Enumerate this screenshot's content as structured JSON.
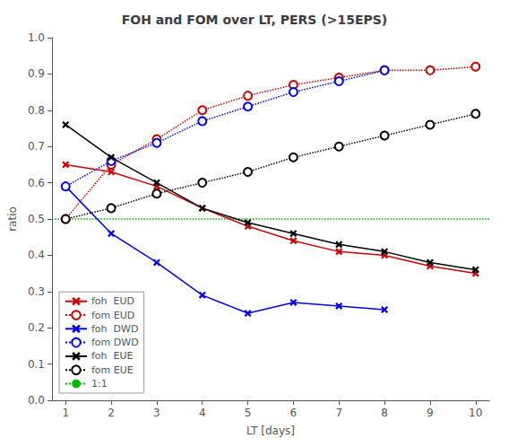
{
  "chart_data": {
    "type": "line",
    "title": "FOH and FOM over LT, PERS (>15EPS)",
    "xlabel": "LT [days]",
    "ylabel": "ratio",
    "x": [
      1,
      2,
      3,
      4,
      5,
      6,
      7,
      8,
      9,
      10
    ],
    "xlim": [
      0.7,
      10.3
    ],
    "xticks": [
      1,
      2,
      3,
      4,
      5,
      6,
      7,
      8,
      9,
      10
    ],
    "ylim": [
      0,
      1
    ],
    "yticks": [
      {
        "value": 0,
        "label": "0.0"
      },
      0.1,
      0.2,
      0.3,
      0.4,
      0.5,
      0.6,
      0.7,
      0.8,
      0.9,
      {
        "value": 1,
        "label": "1.0"
      }
    ],
    "grid": false,
    "legend": "lower left",
    "series": [
      {
        "name": "foh  EUD",
        "color": "#cc0000",
        "marker": "x",
        "line_style": "solid",
        "values": [
          0.65,
          0.63,
          0.59,
          0.53,
          0.48,
          0.44,
          0.41,
          0.4,
          0.37,
          0.35
        ]
      },
      {
        "name": "fom EUD",
        "color": "#cc0000",
        "marker": "open_circle",
        "line_style": "dotted",
        "values": [
          0.5,
          0.65,
          0.72,
          0.8,
          0.84,
          0.87,
          0.89,
          0.91,
          0.91,
          0.92
        ]
      },
      {
        "name": "foh  DWD",
        "color": "#0000ee",
        "marker": "x",
        "line_style": "solid",
        "values": [
          0.59,
          0.46,
          0.38,
          0.29,
          0.24,
          0.27,
          0.26,
          0.25,
          null,
          null
        ]
      },
      {
        "name": "fom DWD",
        "color": "#0000ee",
        "marker": "open_circle",
        "line_style": "dotted",
        "values": [
          0.59,
          0.66,
          0.71,
          0.77,
          0.81,
          0.85,
          0.88,
          0.91,
          null,
          null
        ]
      },
      {
        "name": "foh  EUE",
        "color": "#000000",
        "marker": "x",
        "line_style": "solid",
        "values": [
          0.76,
          0.67,
          0.6,
          0.53,
          0.49,
          0.46,
          0.43,
          0.41,
          0.38,
          0.36
        ]
      },
      {
        "name": "fom EUE",
        "color": "#000000",
        "marker": "open_circle",
        "line_style": "dotted",
        "values": [
          0.5,
          0.53,
          0.57,
          0.6,
          0.63,
          0.67,
          0.7,
          0.73,
          0.76,
          0.79
        ]
      },
      {
        "name": "1:1",
        "color": "#00bb00",
        "type": "hline",
        "line_style": "dotted",
        "value": 0.5
      }
    ]
  }
}
